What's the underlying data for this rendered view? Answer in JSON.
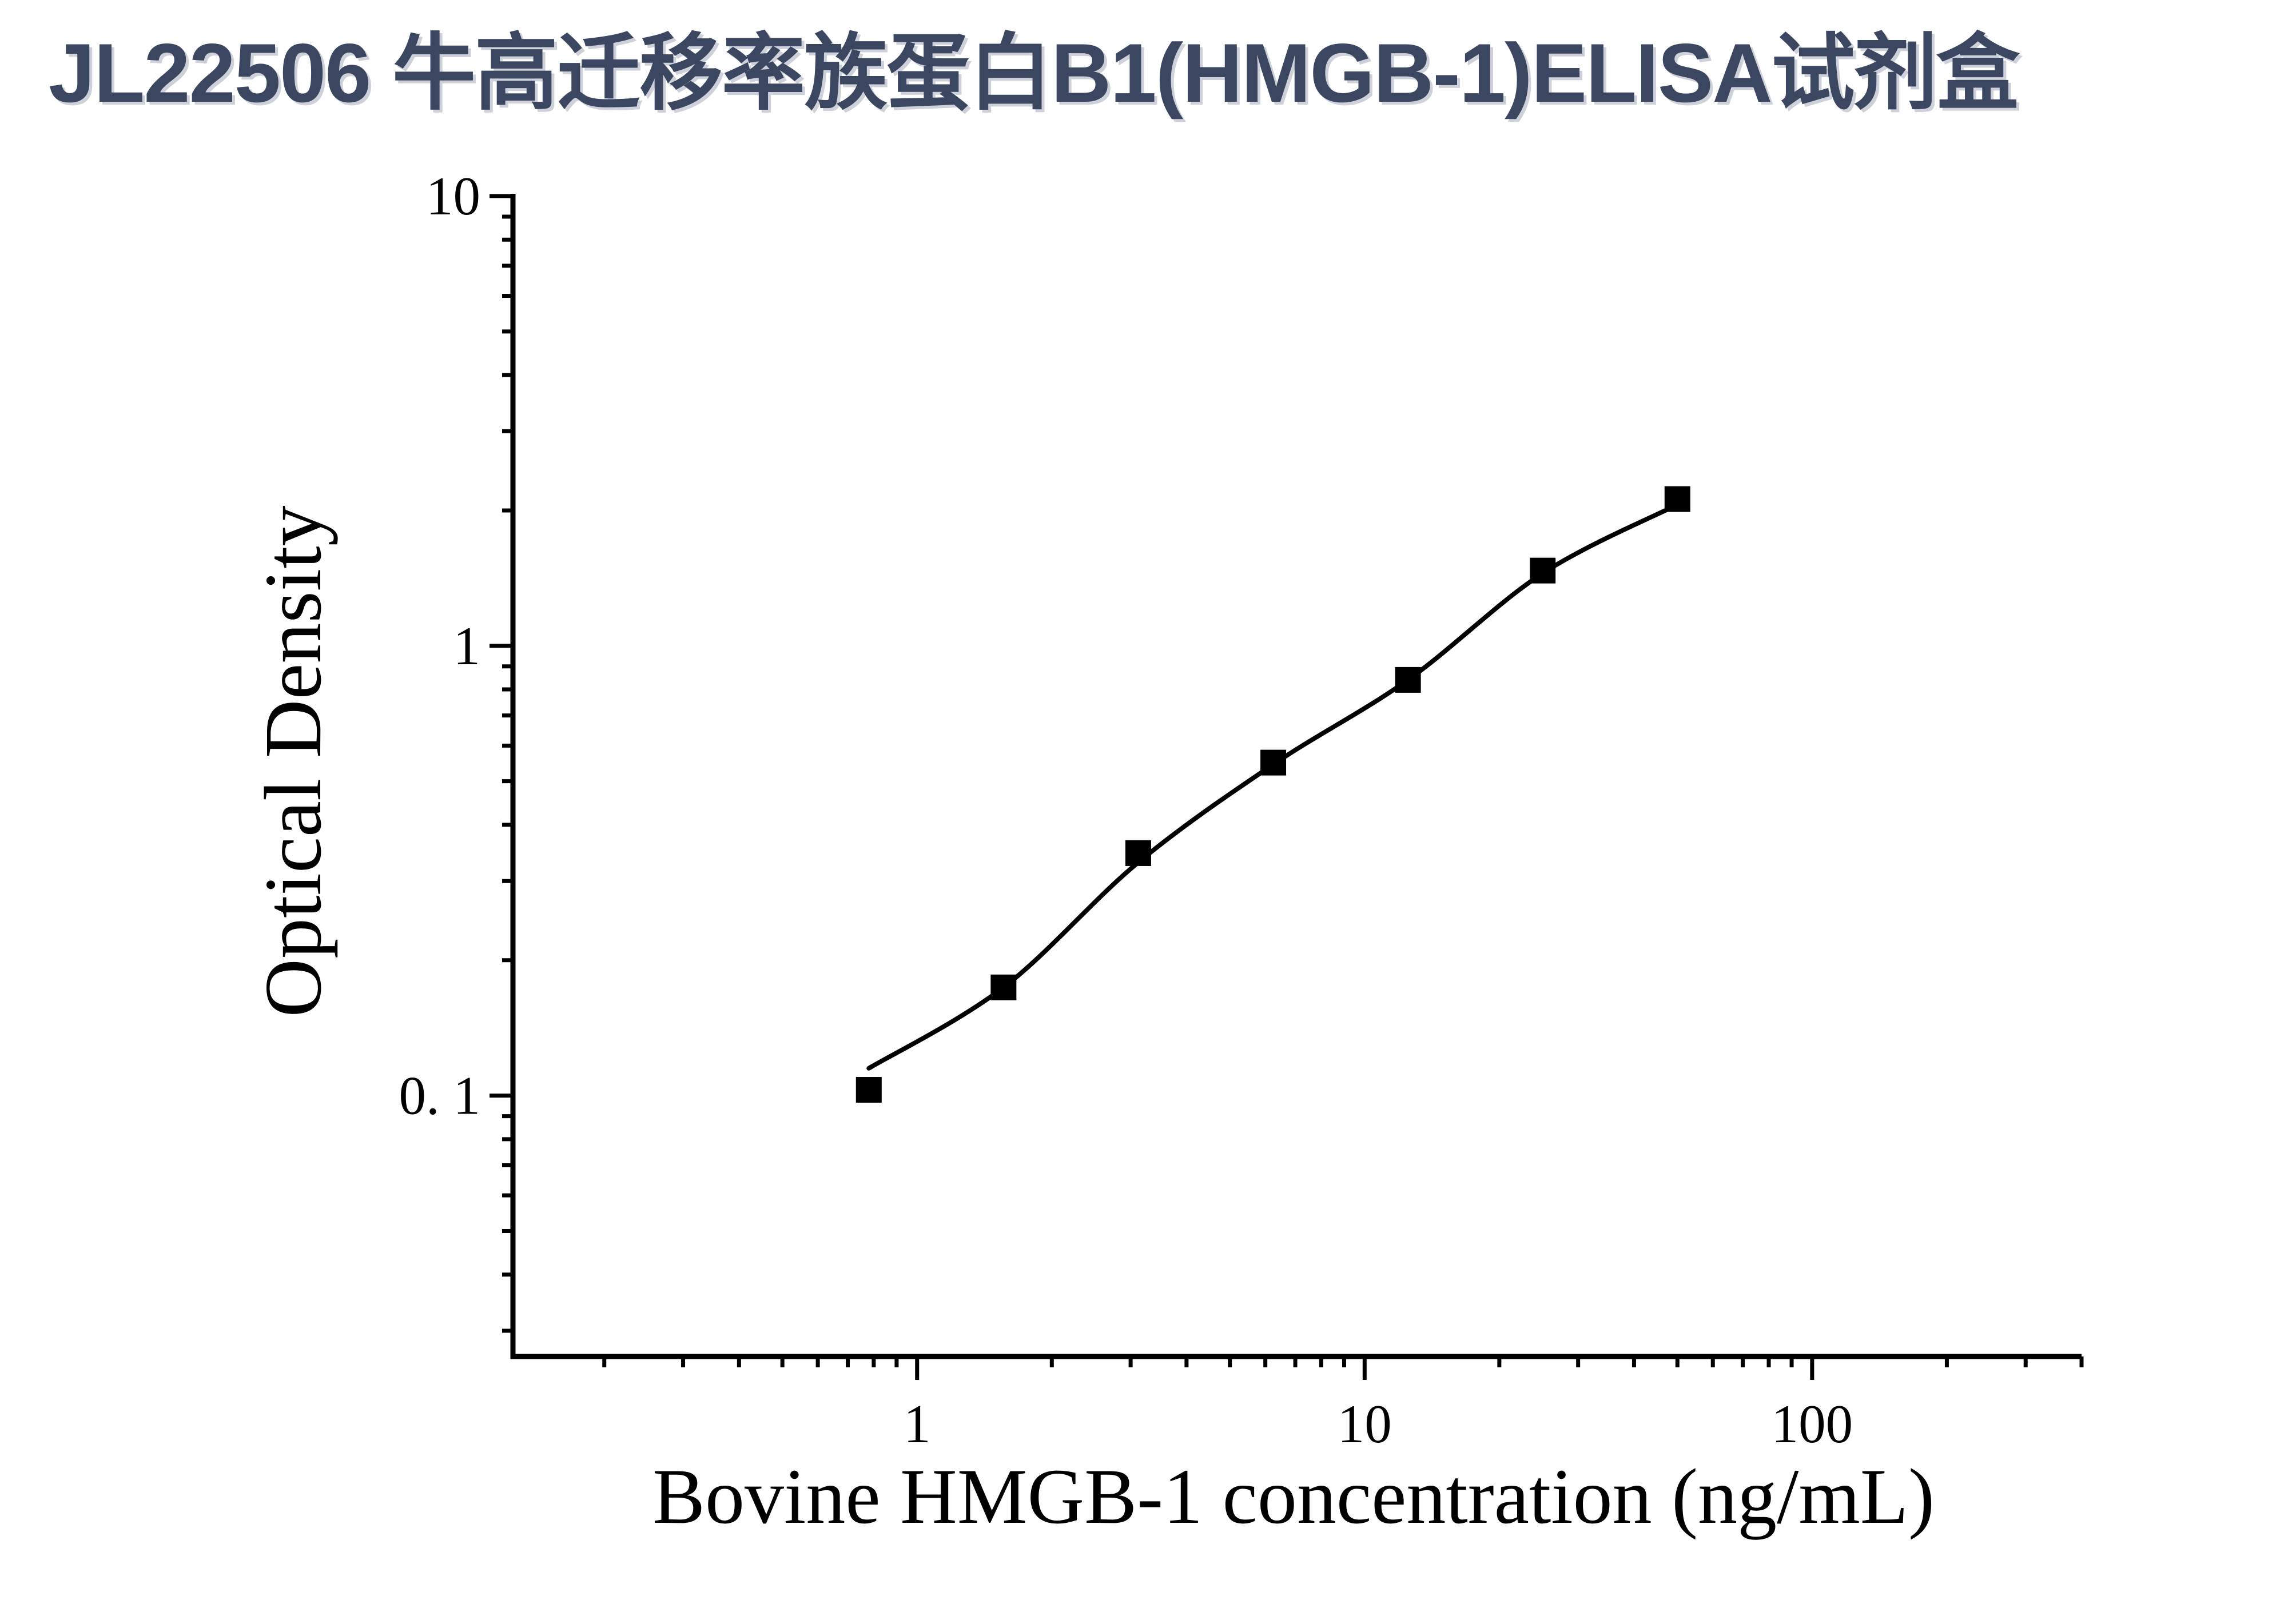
{
  "title": {
    "text": "JL22506 牛高迁移率族蛋白B1(HMGB-1)ELISA试剂盒",
    "color": "#3b4661"
  },
  "chart_data": {
    "type": "scatter",
    "title": "",
    "xlabel": "Bovine HMGB-1 concentration (ng/mL)",
    "ylabel": "Optical Density",
    "x_scale": "log",
    "y_scale": "log",
    "xlim": [
      0.125,
      400
    ],
    "ylim": [
      0.0263,
      10
    ],
    "grid": false,
    "legend_position": "none",
    "axis_color": "#000000",
    "marker_shape": "square",
    "marker_color": "#000000",
    "curve_color": "#000000",
    "x_major_ticks": [
      {
        "value": 1,
        "label": "1"
      },
      {
        "value": 10,
        "label": "10"
      },
      {
        "value": 100,
        "label": "100"
      }
    ],
    "y_major_ticks": [
      {
        "value": 10,
        "label": "10"
      },
      {
        "value": 1,
        "label": "1"
      },
      {
        "value": 0.1,
        "label": "0. 1"
      }
    ],
    "x_minor_ticks": [
      0.2,
      0.3,
      0.4,
      0.5,
      0.6,
      0.7,
      0.8,
      0.9,
      2,
      3,
      4,
      5,
      6,
      7,
      8,
      9,
      20,
      30,
      40,
      50,
      60,
      70,
      80,
      90,
      200,
      300,
      400
    ],
    "y_minor_ticks": [
      0.03,
      0.04,
      0.05,
      0.06,
      0.07,
      0.08,
      0.09,
      0.2,
      0.3,
      0.4,
      0.5,
      0.6,
      0.7,
      0.8,
      0.9,
      2,
      3,
      4,
      5,
      6,
      7,
      8,
      9
    ],
    "series": [
      {
        "name": "standard-curve-points",
        "points": [
          {
            "concentration_ng_ml": 0.78,
            "od": 0.103
          },
          {
            "concentration_ng_ml": 1.56,
            "od": 0.174
          },
          {
            "concentration_ng_ml": 3.12,
            "od": 0.346
          },
          {
            "concentration_ng_ml": 6.25,
            "od": 0.55
          },
          {
            "concentration_ng_ml": 12.5,
            "od": 0.84
          },
          {
            "concentration_ng_ml": 25,
            "od": 1.47
          },
          {
            "concentration_ng_ml": 50,
            "od": 2.12
          }
        ]
      }
    ],
    "fitted_curve_points": [
      {
        "x": 0.78,
        "y": 0.115
      },
      {
        "x": 1.56,
        "y": 0.174
      },
      {
        "x": 3.12,
        "y": 0.33
      },
      {
        "x": 6.25,
        "y": 0.545
      },
      {
        "x": 12.5,
        "y": 0.84
      },
      {
        "x": 25,
        "y": 1.45
      },
      {
        "x": 50,
        "y": 2.06
      }
    ]
  }
}
